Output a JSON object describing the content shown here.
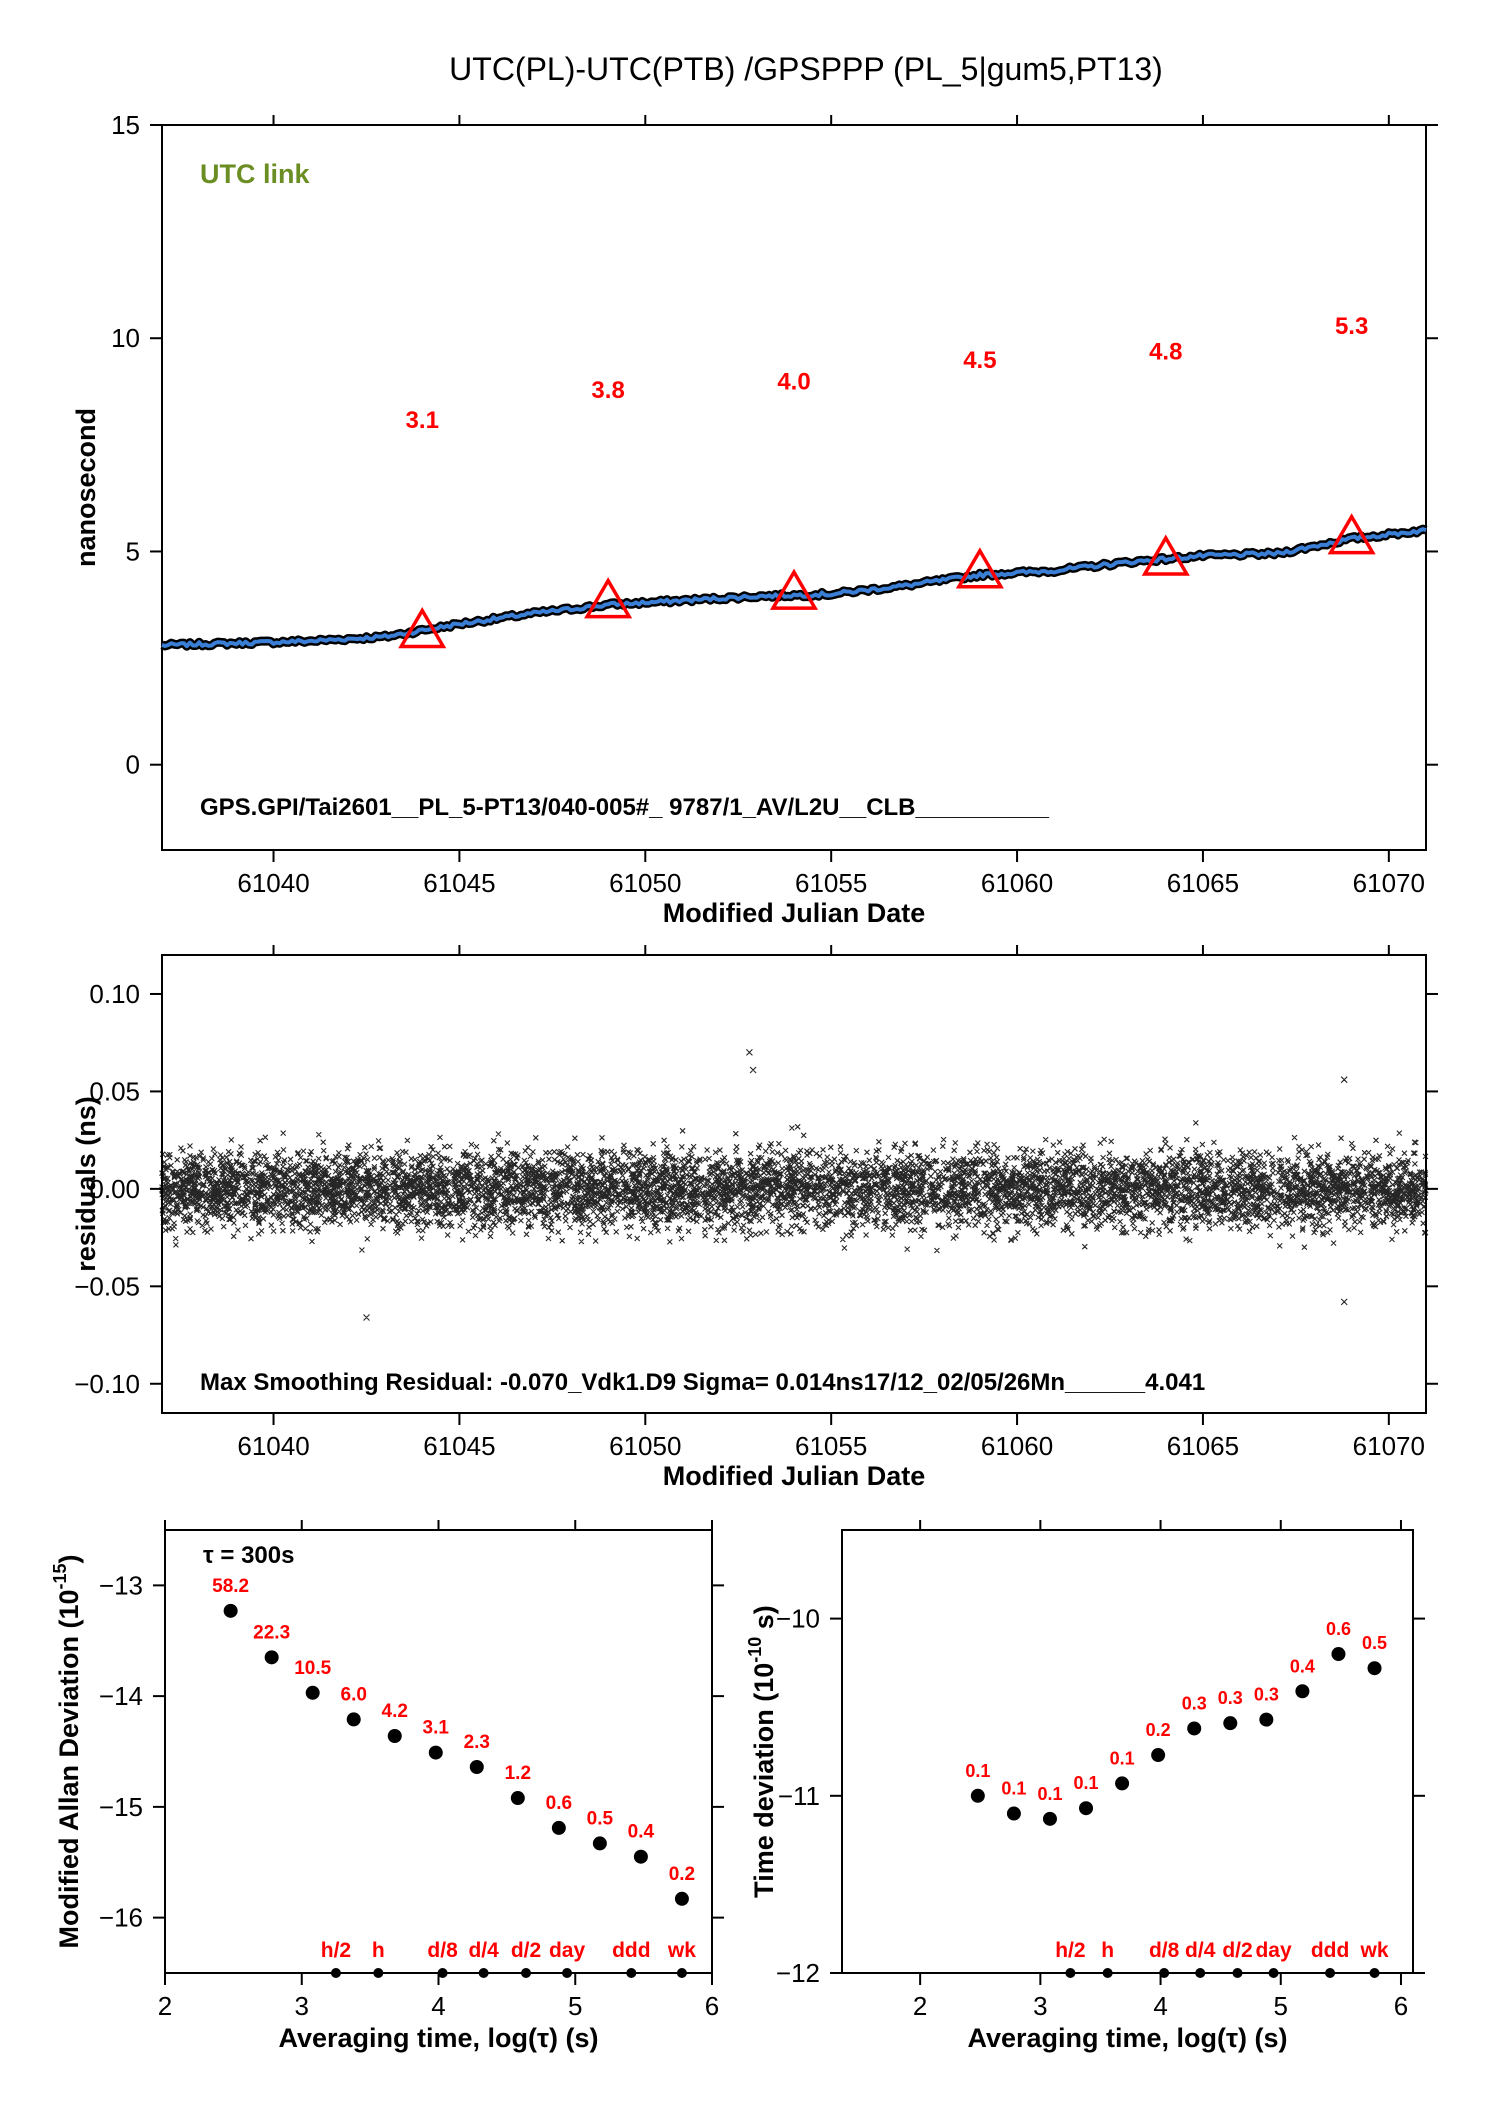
{
  "title": "UTC(PL)-UTC(PTB)  /GPSPPP  (PL_5|gum5,PT13)",
  "colors": {
    "series": "#3a7fd5",
    "series_outline": "#000000",
    "markers": "#ff0000",
    "link_label": "#6b8e23",
    "residual_points": "#000000",
    "dots": "#000000"
  },
  "chart_data": [
    {
      "type": "line",
      "id": "utc-link",
      "xlabel": "Modified Julian Date",
      "ylabel": "nanosecond",
      "xlim": [
        61037,
        61071
      ],
      "ylim": [
        -2,
        15
      ],
      "xticks": [
        "61040",
        "61045",
        "61050",
        "61055",
        "61060",
        "61065",
        "61070"
      ],
      "yticks": [
        "0",
        "5",
        "10",
        "15"
      ],
      "link_label": "UTC link",
      "footnote": "GPS.GPI/Tai2601__PL_5-PT13/040-005#_  9787/1_AV/L2U__CLB__________",
      "series": [
        {
          "x": [
            61037,
            61039,
            61041,
            61043,
            61045,
            61047,
            61049,
            61051,
            61053,
            61055,
            61057,
            61059,
            61061,
            61063,
            61065,
            61067,
            61069,
            61071
          ],
          "y": [
            2.8,
            2.85,
            2.9,
            3.0,
            3.3,
            3.55,
            3.75,
            3.85,
            3.95,
            4.0,
            4.2,
            4.45,
            4.55,
            4.75,
            4.9,
            4.95,
            5.3,
            5.5
          ]
        }
      ],
      "markers": {
        "x": [
          61044,
          61049,
          61054,
          61059,
          61064,
          61069
        ],
        "y": [
          3.1,
          3.8,
          4.0,
          4.5,
          4.8,
          5.3
        ]
      },
      "annotations": [
        {
          "x": 61044,
          "y": 7.9,
          "text": "3.1"
        },
        {
          "x": 61049,
          "y": 8.6,
          "text": "3.8"
        },
        {
          "x": 61054,
          "y": 8.8,
          "text": "4.0"
        },
        {
          "x": 61059,
          "y": 9.3,
          "text": "4.5"
        },
        {
          "x": 61064,
          "y": 9.5,
          "text": "4.8"
        },
        {
          "x": 61069,
          "y": 10.1,
          "text": "5.3"
        }
      ]
    },
    {
      "type": "scatter",
      "id": "residuals",
      "xlabel": "Modified Julian Date",
      "ylabel": "residuals (ns)",
      "xlim": [
        61037,
        61071
      ],
      "ylim": [
        -0.115,
        0.12
      ],
      "xticks": [
        "61040",
        "61045",
        "61050",
        "61055",
        "61060",
        "61065",
        "61070"
      ],
      "yticks": [
        "0.10",
        "0.05",
        "0.00",
        "−0.05",
        "−0.10"
      ],
      "sigma": 0.014,
      "point_count": 9787,
      "notable_points": [
        {
          "x": 61052.8,
          "y": 0.07
        },
        {
          "x": 61052.9,
          "y": 0.061
        },
        {
          "x": 61068.8,
          "y": 0.056
        },
        {
          "x": 61042.5,
          "y": -0.066
        },
        {
          "x": 61068.8,
          "y": -0.058
        }
      ],
      "footnote": "Max Smoothing Residual: -0.070_Vdk1.D9  Sigma= 0.014ns17/12_02/05/26Mn______4.041"
    },
    {
      "type": "scatter",
      "id": "mdev",
      "xlabel": "Averaging time, log(τ) (s)",
      "ylabel": "Modified Allan Deviation (10",
      "ylabel_exp": "-15",
      "ylabel_end": ")",
      "xlim": [
        2,
        6
      ],
      "ylim": [
        -16.5,
        -12.5
      ],
      "xticks": [
        "2",
        "3",
        "4",
        "5",
        "6"
      ],
      "yticks": [
        "−13",
        "−14",
        "−15",
        "−16"
      ],
      "tau_note": "τ = 300s",
      "x": [
        2.48,
        2.78,
        3.08,
        3.38,
        3.68,
        3.98,
        4.28,
        4.58,
        4.88,
        5.18,
        5.48,
        5.78
      ],
      "y": [
        -13.23,
        -13.65,
        -13.97,
        -14.21,
        -14.36,
        -14.51,
        -14.64,
        -14.92,
        -15.19,
        -15.33,
        -15.45,
        -15.83
      ],
      "labels": [
        "58.2",
        "22.3",
        "10.5",
        "6.0",
        "4.2",
        "3.1",
        "2.3",
        "1.2",
        "0.6",
        "0.5",
        "0.4",
        "0.2"
      ],
      "time_markers": [
        {
          "x": 3.25,
          "label": "h/2"
        },
        {
          "x": 3.56,
          "label": "h"
        },
        {
          "x": 4.03,
          "label": "d/8"
        },
        {
          "x": 4.33,
          "label": "d/4"
        },
        {
          "x": 4.64,
          "label": "d/2"
        },
        {
          "x": 4.94,
          "label": "day"
        },
        {
          "x": 5.41,
          "label": "ddd"
        },
        {
          "x": 5.78,
          "label": "wk"
        }
      ]
    },
    {
      "type": "scatter",
      "id": "tdev",
      "xlabel": "Averaging time, log(τ) (s)",
      "ylabel": "Time deviation (10",
      "ylabel_exp": "-10",
      "ylabel_end": " s)",
      "xlim": [
        1.35,
        6.1
      ],
      "ylim": [
        -12,
        -9.5
      ],
      "xticks": [
        "2",
        "3",
        "4",
        "5",
        "6"
      ],
      "yticks": [
        "−10",
        "−11",
        "−12"
      ],
      "x": [
        2.48,
        2.78,
        3.08,
        3.38,
        3.68,
        3.98,
        4.28,
        4.58,
        4.88,
        5.18,
        5.48,
        5.78
      ],
      "y": [
        -11.0,
        -11.1,
        -11.13,
        -11.07,
        -10.93,
        -10.77,
        -10.62,
        -10.59,
        -10.57,
        -10.41,
        -10.2,
        -10.28
      ],
      "labels": [
        "0.1",
        "0.1",
        "0.1",
        "0.1",
        "0.1",
        "0.2",
        "0.3",
        "0.3",
        "0.3",
        "0.4",
        "0.6",
        "0.5"
      ],
      "time_markers": [
        {
          "x": 3.25,
          "label": "h/2"
        },
        {
          "x": 3.56,
          "label": "h"
        },
        {
          "x": 4.03,
          "label": "d/8"
        },
        {
          "x": 4.33,
          "label": "d/4"
        },
        {
          "x": 4.64,
          "label": "d/2"
        },
        {
          "x": 4.94,
          "label": "day"
        },
        {
          "x": 5.41,
          "label": "ddd"
        },
        {
          "x": 5.78,
          "label": "wk"
        }
      ]
    }
  ]
}
